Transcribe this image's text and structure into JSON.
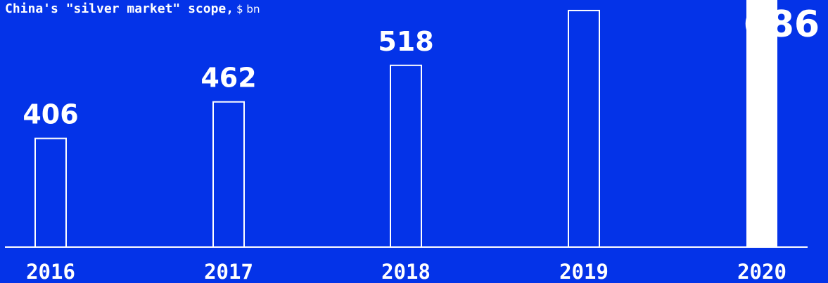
{
  "title": {
    "main": "China's \"silver market\" scope,",
    "unit": "$ bn"
  },
  "colors": {
    "background": "#0433e8",
    "foreground": "#ffffff"
  },
  "chart_data": {
    "type": "bar",
    "title": "China's \"silver market\" scope, $ bn",
    "categories": [
      "2016",
      "2017",
      "2018",
      "2019",
      "2020"
    ],
    "values": [
      406,
      462,
      518,
      602,
      686
    ],
    "highlight_last": true,
    "grid": false,
    "legend": "none"
  }
}
